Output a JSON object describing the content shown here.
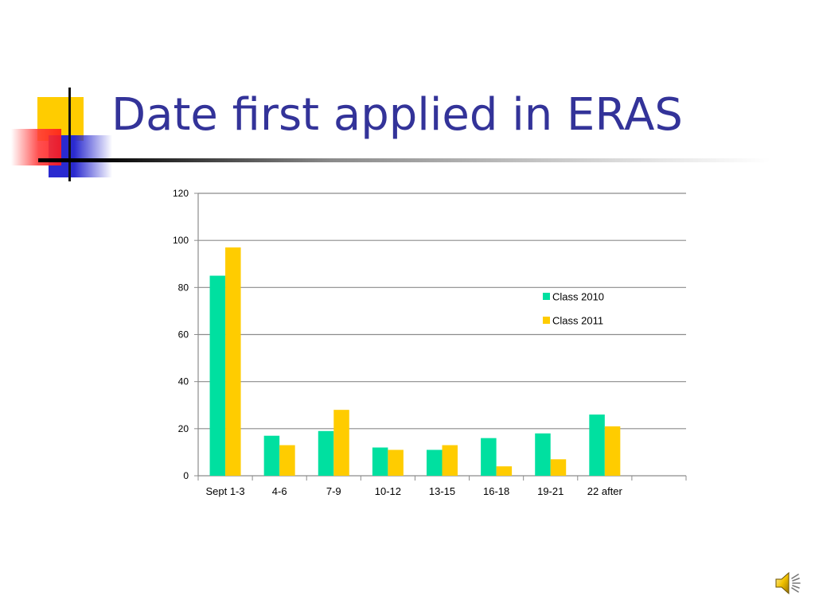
{
  "slide": {
    "title": "Date first applied in ERAS"
  },
  "colors": {
    "title": "#333399",
    "series": [
      "#00e0a0",
      "#ffcc00"
    ],
    "deco_yellow": "#ffcc00",
    "deco_red": "#ff3b3b",
    "deco_blue": "#2a2ad0"
  },
  "icons": {
    "speaker": "speaker-icon"
  },
  "chart_data": {
    "type": "bar",
    "categories": [
      "Sept 1-3",
      "4-6",
      "7-9",
      "10-12",
      "13-15",
      "16-18",
      "19-21",
      "22 after"
    ],
    "series": [
      {
        "name": "Class 2010",
        "values": [
          85,
          17,
          19,
          12,
          11,
          16,
          18,
          26
        ]
      },
      {
        "name": "Class 2011",
        "values": [
          97,
          13,
          28,
          11,
          13,
          4,
          7,
          21
        ]
      }
    ],
    "ylim": [
      0,
      120
    ],
    "yticks": [
      0,
      20,
      40,
      60,
      80,
      100,
      120
    ],
    "grid": true,
    "legend_position": "right"
  }
}
